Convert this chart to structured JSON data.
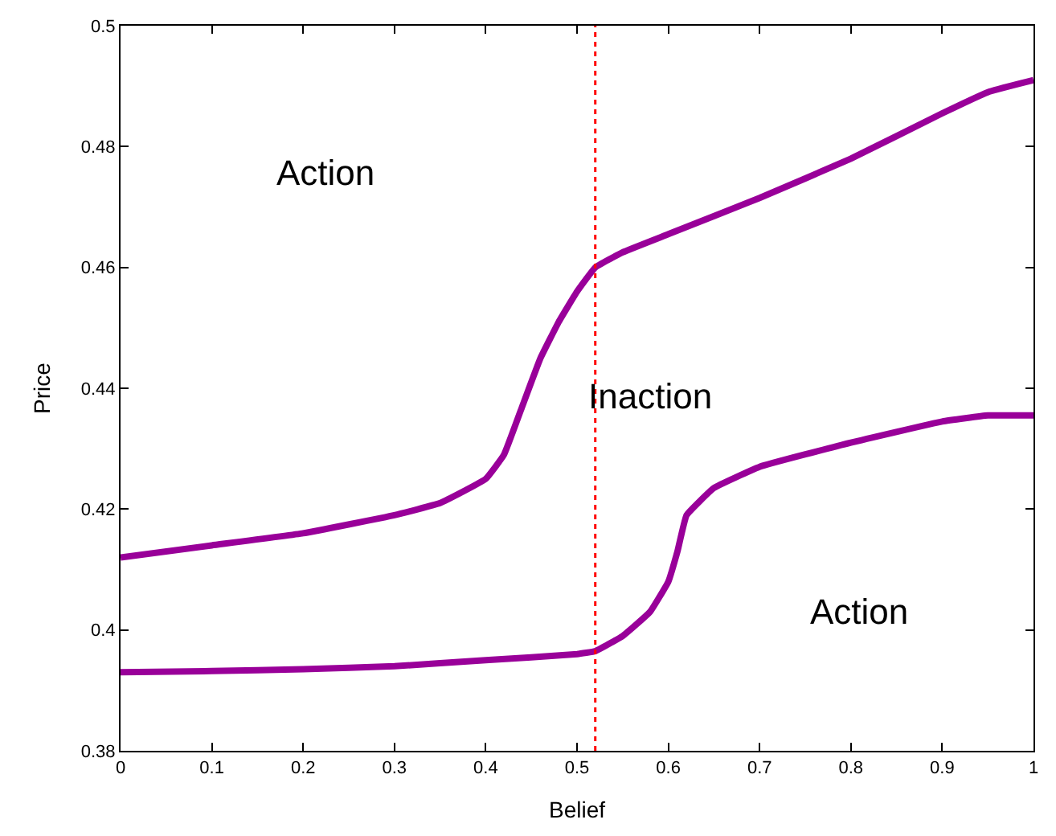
{
  "chart_data": {
    "type": "line",
    "xlabel": "Belief",
    "ylabel": "Price",
    "xlim": [
      0,
      1
    ],
    "xticks": [
      0,
      0.1,
      0.2,
      0.3,
      0.4,
      0.5,
      0.6,
      0.7,
      0.8,
      0.9,
      1
    ],
    "ylim": [
      0.38,
      0.5
    ],
    "yticks": [
      0.38,
      0.4,
      0.42,
      0.44,
      0.46,
      0.48,
      0.5
    ],
    "legend": false,
    "marker": "none",
    "line_style": "solid",
    "series": [
      {
        "color": "#990099",
        "x": [
          0,
          0.1,
          0.2,
          0.3,
          0.35,
          0.4,
          0.42,
          0.44,
          0.46,
          0.48,
          0.5,
          0.52,
          0.55,
          0.6,
          0.7,
          0.8,
          0.9,
          0.95,
          1
        ],
        "values": [
          0.412,
          0.414,
          0.416,
          0.419,
          0.421,
          0.425,
          0.429,
          0.437,
          0.445,
          0.451,
          0.456,
          0.46,
          0.4625,
          0.4655,
          0.4715,
          0.478,
          0.4855,
          0.489,
          0.491
        ]
      },
      {
        "color": "#990099",
        "x": [
          0,
          0.1,
          0.2,
          0.3,
          0.4,
          0.5,
          0.52,
          0.55,
          0.58,
          0.6,
          0.61,
          0.62,
          0.65,
          0.7,
          0.8,
          0.9,
          0.95,
          1
        ],
        "values": [
          0.393,
          0.3932,
          0.3935,
          0.394,
          0.395,
          0.396,
          0.3965,
          0.399,
          0.403,
          0.408,
          0.413,
          0.419,
          0.4235,
          0.427,
          0.431,
          0.4345,
          0.4355,
          0.4355
        ]
      }
    ],
    "ref_lines": [
      {
        "axis": "x",
        "value": 0.52,
        "color": "#ff0000",
        "line_style": "dotted"
      }
    ],
    "annotations": [
      "Action",
      "Inaction",
      "Action"
    ]
  }
}
